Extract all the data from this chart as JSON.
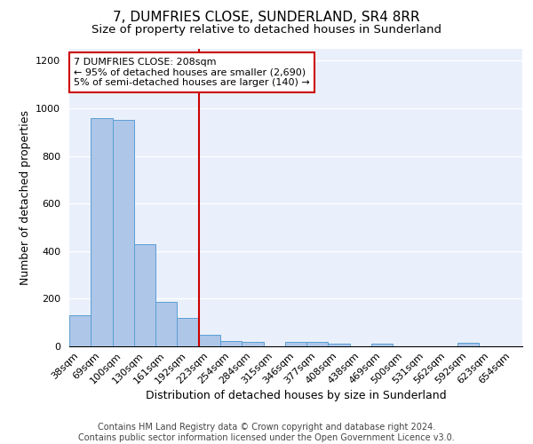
{
  "title": "7, DUMFRIES CLOSE, SUNDERLAND, SR4 8RR",
  "subtitle": "Size of property relative to detached houses in Sunderland",
  "xlabel": "Distribution of detached houses by size in Sunderland",
  "ylabel": "Number of detached properties",
  "categories": [
    "38sqm",
    "69sqm",
    "100sqm",
    "130sqm",
    "161sqm",
    "192sqm",
    "223sqm",
    "254sqm",
    "284sqm",
    "315sqm",
    "346sqm",
    "377sqm",
    "408sqm",
    "438sqm",
    "469sqm",
    "500sqm",
    "531sqm",
    "562sqm",
    "592sqm",
    "623sqm",
    "654sqm"
  ],
  "values": [
    130,
    960,
    950,
    430,
    185,
    120,
    50,
    22,
    20,
    0,
    18,
    18,
    12,
    0,
    12,
    0,
    0,
    0,
    15,
    0,
    0
  ],
  "bar_color": "#aec6e8",
  "bar_edge_color": "#5a9fd4",
  "vline_x": 5.5,
  "vline_color": "#cc0000",
  "annotation_text": "7 DUMFRIES CLOSE: 208sqm\n← 95% of detached houses are smaller (2,690)\n5% of semi-detached houses are larger (140) →",
  "annotation_box_color": "#ffffff",
  "annotation_box_edge": "#cc0000",
  "ylim": [
    0,
    1250
  ],
  "yticks": [
    0,
    200,
    400,
    600,
    800,
    1000,
    1200
  ],
  "footer": "Contains HM Land Registry data © Crown copyright and database right 2024.\nContains public sector information licensed under the Open Government Licence v3.0.",
  "bg_color": "#eaf0fb",
  "fig_bg_color": "#ffffff",
  "title_fontsize": 11,
  "subtitle_fontsize": 9.5,
  "xlabel_fontsize": 9,
  "ylabel_fontsize": 9,
  "footer_fontsize": 7,
  "tick_fontsize": 8,
  "ann_fontsize": 8
}
